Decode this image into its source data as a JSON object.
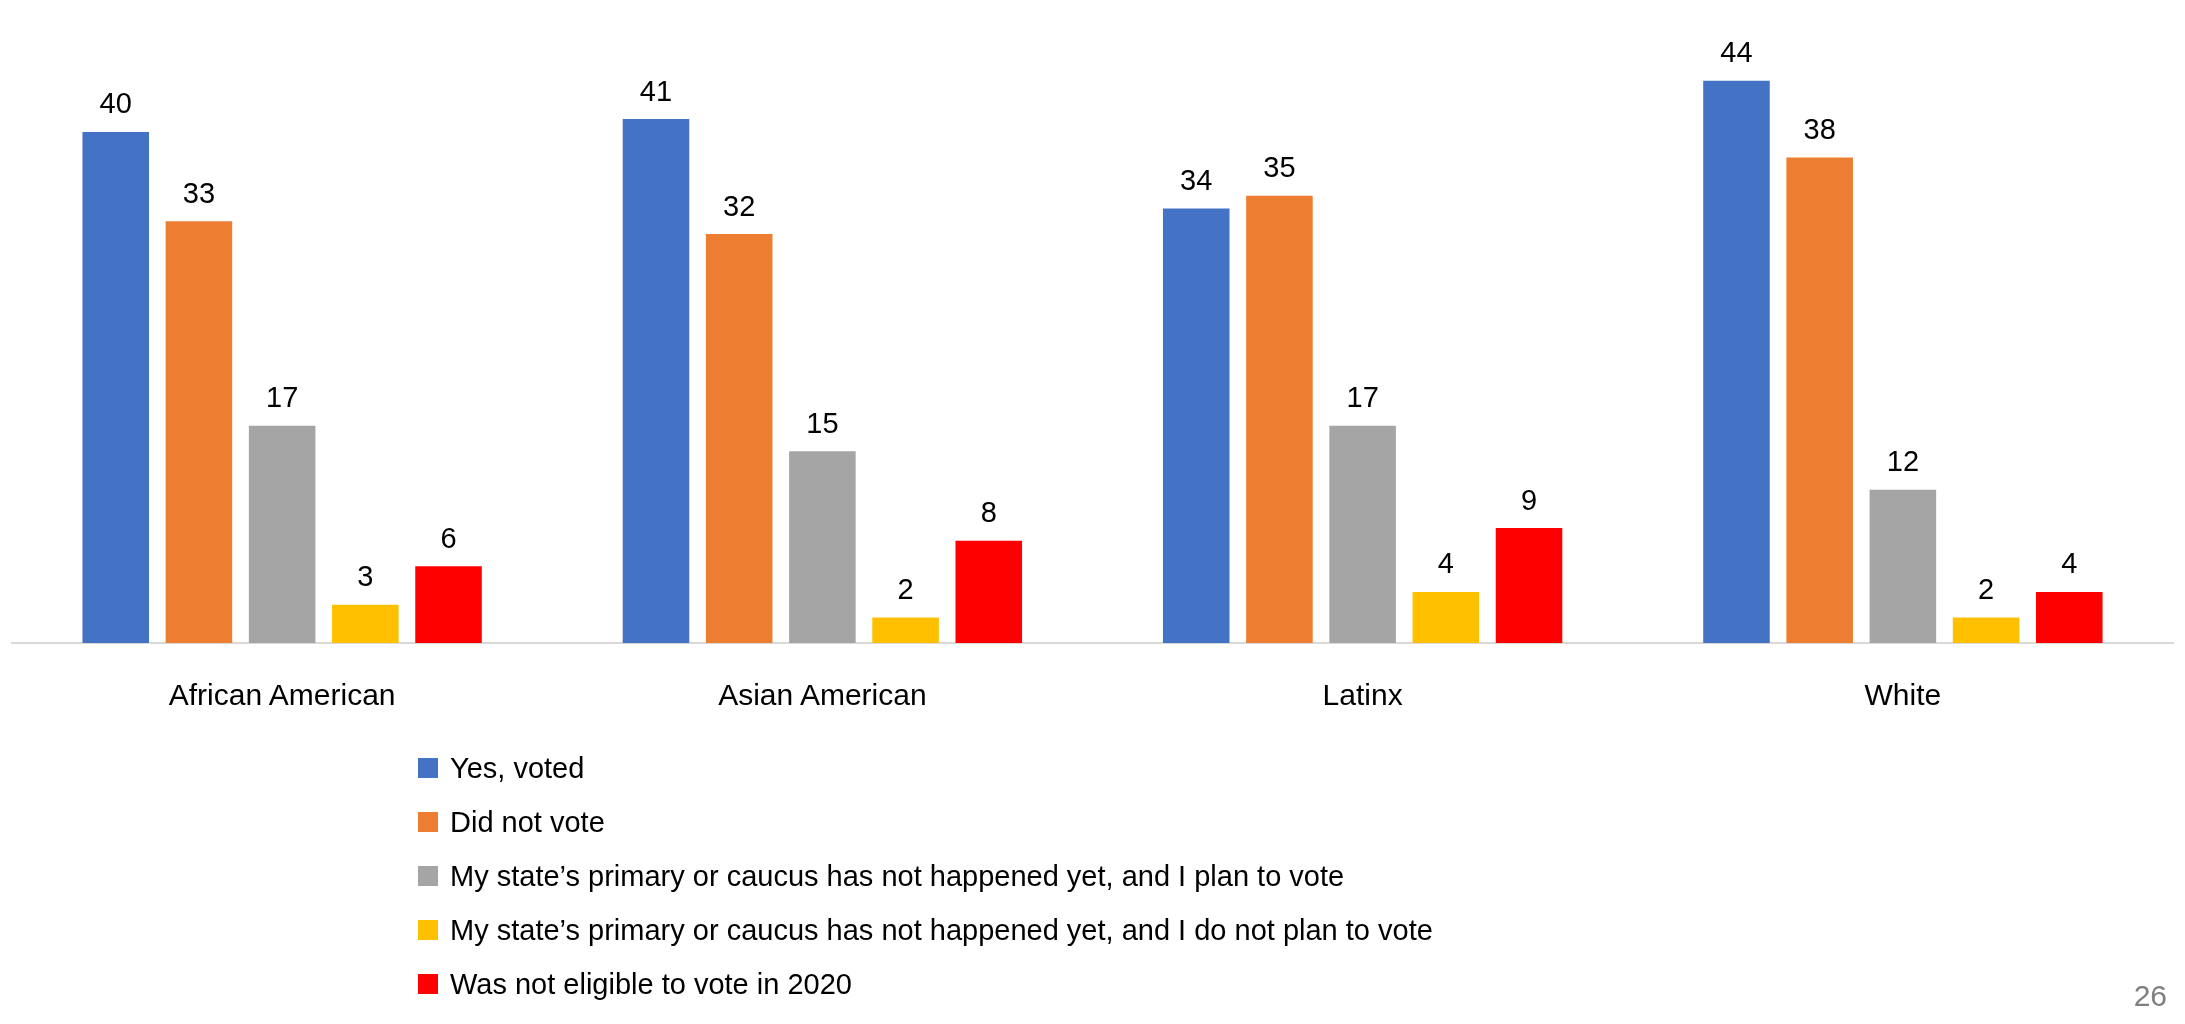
{
  "chart_data": {
    "type": "bar",
    "categories": [
      "African American",
      "Asian American",
      "Latinx",
      "White"
    ],
    "series": [
      {
        "name": "Yes, voted",
        "color": "#4472c4",
        "values": [
          40,
          41,
          34,
          44
        ]
      },
      {
        "name": "Did not vote",
        "color": "#ed7d31",
        "values": [
          33,
          32,
          35,
          38
        ]
      },
      {
        "name": "My state’s primary or caucus has not happened yet, and I plan to vote",
        "color": "#a5a5a5",
        "values": [
          17,
          15,
          17,
          12
        ]
      },
      {
        "name": "My state’s primary or caucus has not happened yet, and I do not plan to vote",
        "color": "#ffc000",
        "values": [
          3,
          2,
          4,
          2
        ]
      },
      {
        "name": "Was not eligible to vote in 2020",
        "color": "#ff0000",
        "values": [
          6,
          8,
          9,
          4
        ]
      }
    ],
    "data_labels": true,
    "legend": "bottom",
    "grid": false,
    "annotations": [
      "26"
    ]
  }
}
